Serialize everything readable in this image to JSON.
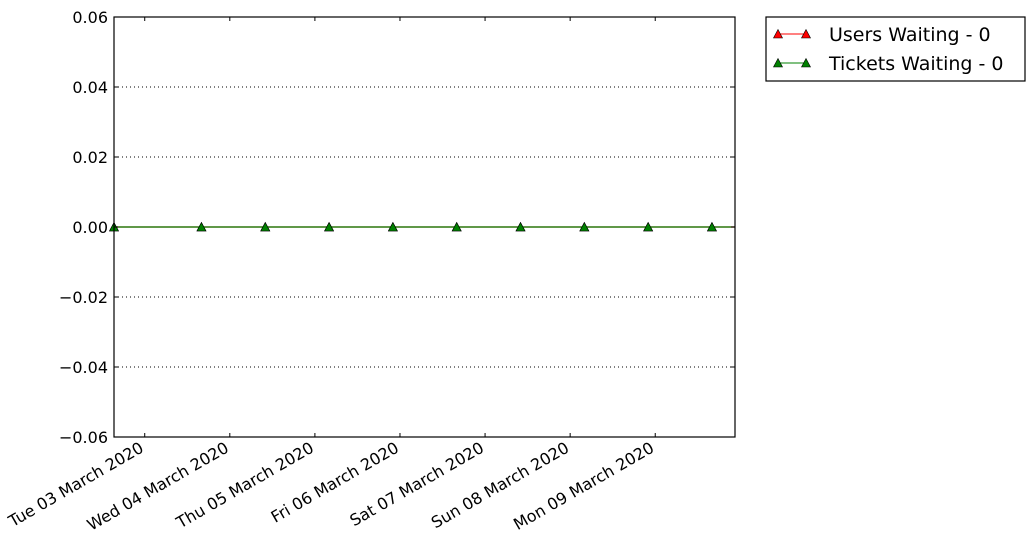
{
  "chart_data": {
    "type": "line",
    "x_type": "date",
    "x_tick_dates": [
      "2020-03-03",
      "2020-03-04",
      "2020-03-05",
      "2020-03-06",
      "2020-03-07",
      "2020-03-08",
      "2020-03-09"
    ],
    "x_tick_labels": [
      "Tue 03 March 2020",
      "Wed 04 March 2020",
      "Thu 05 March 2020",
      "Fri 06 March 2020",
      "Sat 07 March 2020",
      "Sun 08 March 2020",
      "Mon 09 March 2020"
    ],
    "xlim": [
      "2020-03-02 15:20",
      "2020-03-09 22:30"
    ],
    "y_ticks": [
      0.06,
      0.04,
      0.02,
      0.0,
      -0.02,
      -0.04,
      -0.06
    ],
    "y_tick_labels": [
      "0.06",
      "0.04",
      "0.02",
      "0.00",
      "−0.02",
      "−0.04",
      "−0.06"
    ],
    "ylim": [
      -0.06,
      0.06
    ],
    "grid": "horizontal-dotted",
    "legend_position": "outside-top-right",
    "title": "",
    "xlabel": "",
    "ylabel": "",
    "x": [
      "2020-03-02 15:20",
      "2020-03-03 16:00",
      "2020-03-04 10:00",
      "2020-03-05 04:00",
      "2020-03-05 22:00",
      "2020-03-06 16:00",
      "2020-03-07 10:00",
      "2020-03-08 04:00",
      "2020-03-08 22:00",
      "2020-03-09 16:00"
    ],
    "series": [
      {
        "name": "Users Waiting - 0",
        "values": [
          0,
          0,
          0,
          0,
          0,
          0,
          0,
          0,
          0,
          0
        ],
        "color": "#ff0000",
        "marker": "triangle"
      },
      {
        "name": "Tickets Waiting - 0",
        "values": [
          0,
          0,
          0,
          0,
          0,
          0,
          0,
          0,
          0,
          0
        ],
        "color": "#008000",
        "marker": "triangle"
      }
    ]
  }
}
